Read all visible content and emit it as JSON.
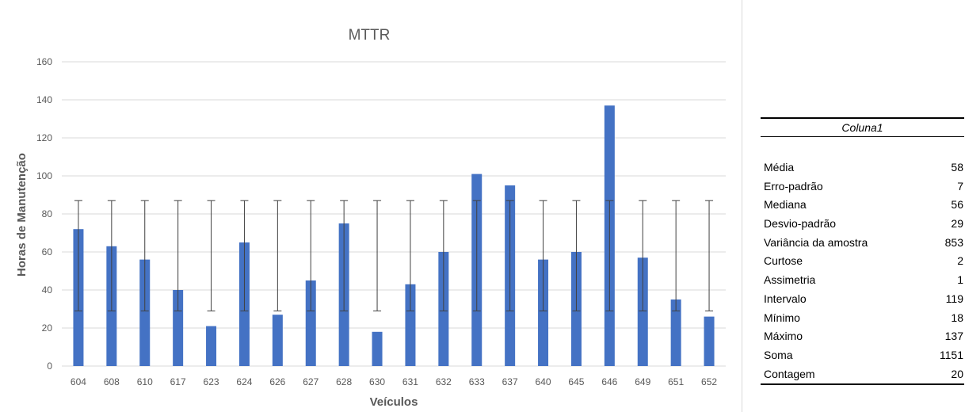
{
  "chart_data": {
    "type": "bar",
    "title": "MTTR",
    "xlabel": "Veículos",
    "ylabel": "Horas de Manutenção",
    "ylim": [
      0,
      160
    ],
    "yticks": [
      0,
      20,
      40,
      60,
      80,
      100,
      120,
      140,
      160
    ],
    "grid": true,
    "categories": [
      "604",
      "608",
      "610",
      "617",
      "623",
      "624",
      "626",
      "627",
      "628",
      "630",
      "631",
      "632",
      "633",
      "637",
      "640",
      "645",
      "646",
      "649",
      "651",
      "652"
    ],
    "values": [
      72,
      63,
      56,
      40,
      21,
      65,
      27,
      45,
      75,
      18,
      43,
      60,
      101,
      95,
      56,
      60,
      137,
      57,
      35,
      26
    ],
    "error_bar": {
      "low": 29,
      "high": 87
    },
    "colors": {
      "bar": "#4472c4",
      "grid": "#d9d9d9",
      "error": "#404040"
    }
  },
  "stats_table": {
    "header": "Coluna1",
    "rows": [
      {
        "label": "Média",
        "value": "58"
      },
      {
        "label": "Erro-padrão",
        "value": "7"
      },
      {
        "label": "Mediana",
        "value": "56"
      },
      {
        "label": "Desvio-padrão",
        "value": "29"
      },
      {
        "label": "Variância da amostra",
        "value": "853"
      },
      {
        "label": "Curtose",
        "value": "2"
      },
      {
        "label": "Assimetria",
        "value": "1"
      },
      {
        "label": "Intervalo",
        "value": "119"
      },
      {
        "label": "Mínimo",
        "value": "18"
      },
      {
        "label": "Máximo",
        "value": "137"
      },
      {
        "label": "Soma",
        "value": "1151"
      },
      {
        "label": "Contagem",
        "value": "20"
      }
    ]
  }
}
